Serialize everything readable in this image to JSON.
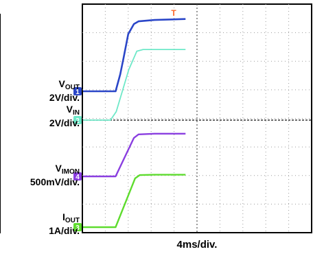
{
  "chart_data": {
    "type": "line",
    "xlabel": "4ms/div.",
    "x_divisions": 10,
    "y_divisions": 8,
    "grid": true,
    "trigger_marker": {
      "label": "T",
      "color": "#ff6a2a"
    },
    "channel_labels": [
      {
        "symbol": "V",
        "sub": "OUT",
        "scale": "2V/div."
      },
      {
        "symbol": "V",
        "sub": "IN",
        "scale": "2V/div."
      },
      {
        "symbol": "V",
        "sub": "IMON",
        "scale": "500mV/div."
      },
      {
        "symbol": "I",
        "sub": "OUT",
        "scale": "1A/div."
      }
    ],
    "series": [
      {
        "name": "VOUT",
        "channel": "1",
        "color": "#2a46c8",
        "width": 2.6,
        "x": [
          -4.6,
          1.2,
          2.0,
          2.6,
          3.4,
          4.4,
          5.2,
          8.0,
          13.4
        ],
        "y": [
          0,
          0,
          0.5,
          1.0,
          1.7,
          2.0,
          2.08,
          2.12,
          2.15
        ]
      },
      {
        "name": "VIN",
        "channel": "2",
        "color": "#6ee8c8",
        "width": 1.8,
        "x": [
          -4.6,
          0.3,
          1.3,
          3.5,
          4.9,
          6.0,
          8.0,
          13.4
        ],
        "y": [
          0,
          0,
          0.25,
          1.5,
          2.05,
          2.1,
          2.1,
          2.1
        ]
      },
      {
        "name": "VIMON",
        "channel": "4",
        "color": "#8a3ee0",
        "width": 2.4,
        "x": [
          -4.6,
          1.2,
          4.4,
          5.2,
          8.0,
          13.4
        ],
        "y": [
          0,
          0,
          1.1,
          1.2,
          1.22,
          1.22
        ]
      },
      {
        "name": "IOUT",
        "channel": "3",
        "color": "#5edc2e",
        "width": 2.4,
        "x": [
          -4.6,
          1.2,
          4.6,
          5.4,
          8.0,
          13.4
        ],
        "y": [
          0,
          0,
          1.45,
          1.55,
          1.56,
          1.56
        ]
      }
    ]
  }
}
